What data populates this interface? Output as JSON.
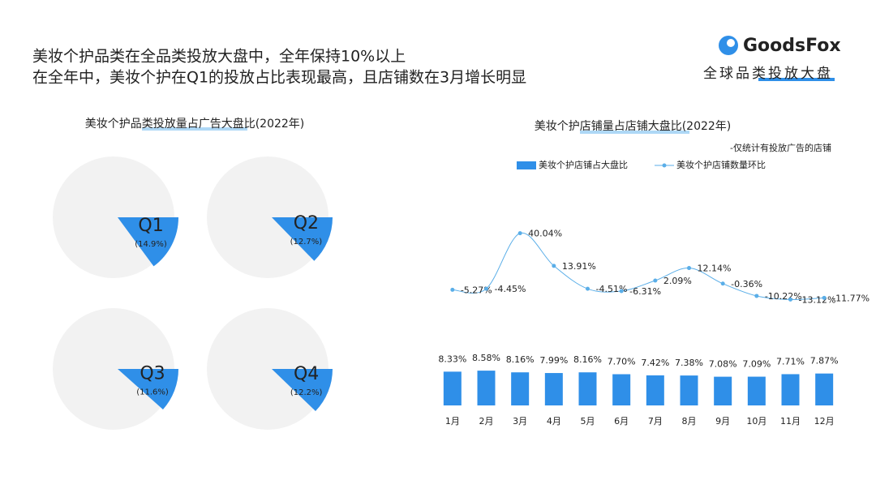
{
  "header": {
    "line1": "美妆个护品类在全品类投放大盘中，全年保持10%以上",
    "line2": "在全年中，美妆个护在Q1的投放占比表现最高，且店铺数在3月增长明显",
    "brand": "GoodsFox",
    "tag": "全球品类投放大盘"
  },
  "chart_data": [
    {
      "type": "pie",
      "title": "美妆个护品类投放量占广告大盘比(2022年)",
      "categories": [
        "Q1",
        "Q2",
        "Q3",
        "Q4"
      ],
      "values": [
        14.9,
        12.7,
        11.6,
        12.2
      ],
      "value_labels": [
        "(14.9%)",
        "(12.7%)",
        "(11.6%)",
        "(12.2%)"
      ],
      "color": "#2f8fe8",
      "rest_color": "#f2f2f2"
    },
    {
      "type": "bar",
      "title": "美妆个护店铺量占店铺大盘比(2022年)",
      "note": "-仅统计有投放广告的店铺",
      "categories": [
        "1月",
        "2月",
        "3月",
        "4月",
        "5月",
        "6月",
        "7月",
        "8月",
        "9月",
        "10月",
        "11月",
        "12月"
      ],
      "ylim": [
        0,
        20
      ],
      "y2lim": [
        -20,
        45
      ],
      "series": [
        {
          "name": "美妆个护店铺占大盘比",
          "color": "#2f8fe8",
          "values": [
            8.33,
            8.58,
            8.16,
            7.99,
            8.16,
            7.7,
            7.42,
            7.38,
            7.08,
            7.09,
            7.71,
            7.87
          ],
          "value_labels": [
            "8.33%",
            "8.58%",
            "8.16%",
            "7.99%",
            "8.16%",
            "7.70%",
            "7.42%",
            "7.38%",
            "7.08%",
            "7.09%",
            "7.71%",
            "7.87%"
          ]
        },
        {
          "name": "美妆个护店铺数量环比",
          "color": "#5aaee8",
          "axis": "y2",
          "type": "line",
          "values": [
            -5.27,
            -4.45,
            40.04,
            13.91,
            -4.51,
            -6.31,
            2.09,
            12.14,
            -0.36,
            -10.22,
            -13.12,
            -11.77
          ],
          "value_labels": [
            "-5.27%",
            "-4.45%",
            "40.04%",
            "13.91%",
            "-4.51%",
            "-6.31%",
            "2.09%",
            "12.14%",
            "-0.36%",
            "-10.22%",
            "-13.12%",
            "-11.77%"
          ]
        }
      ]
    }
  ]
}
